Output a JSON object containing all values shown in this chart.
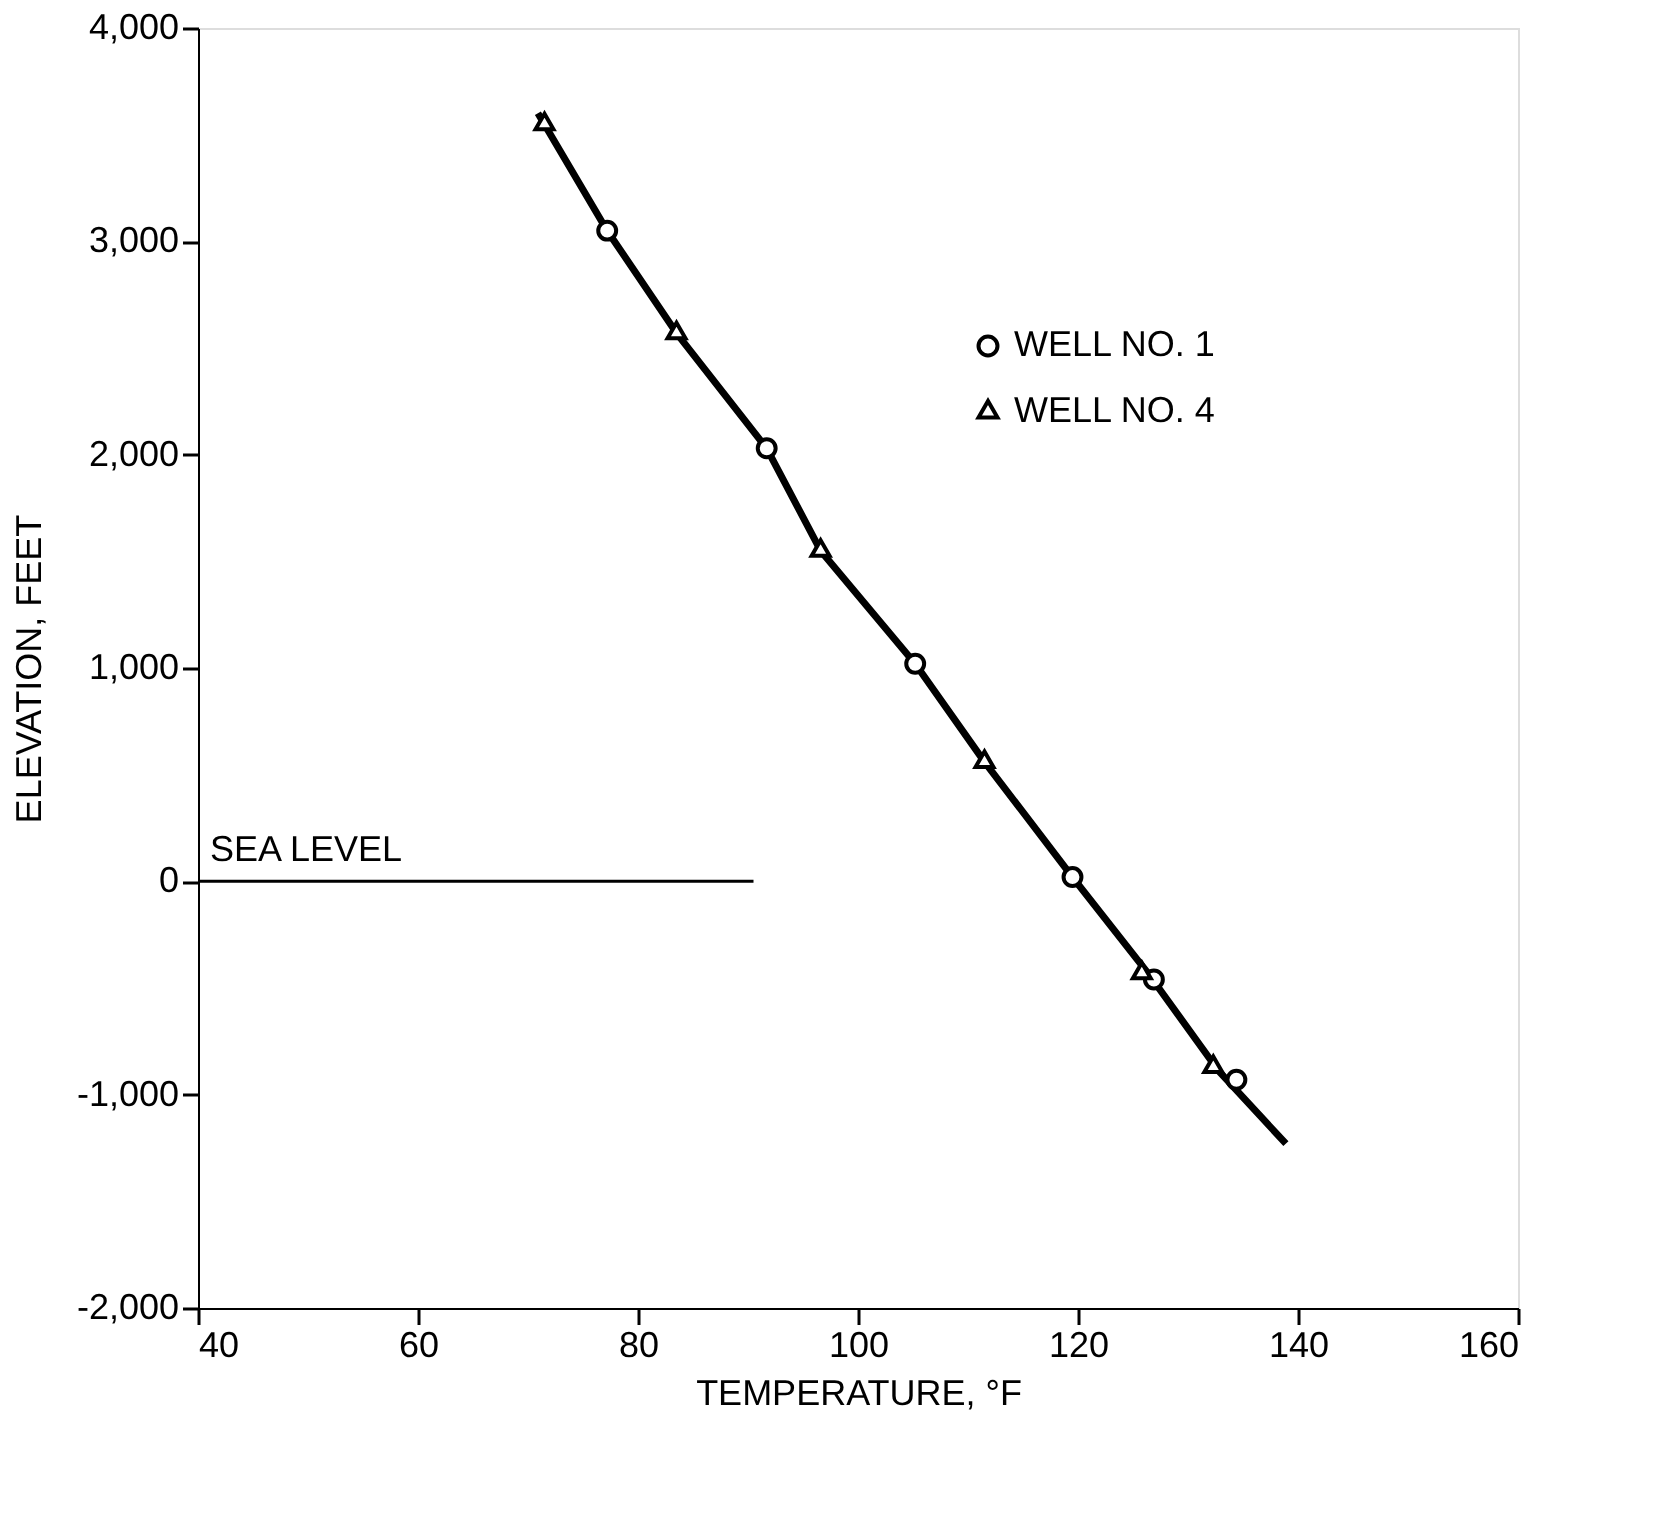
{
  "chart_data": {
    "type": "scatter",
    "xlabel": "TEMPERATURE, °F",
    "ylabel": "ELEVATION, FEET",
    "xlim": [
      40,
      160
    ],
    "xticks": [
      40,
      60,
      80,
      100,
      120,
      140,
      160
    ],
    "ylim": [
      -2000,
      4000
    ],
    "yticks": [
      {
        "value": -2000,
        "label": "-2,000"
      },
      {
        "value": -1000,
        "label": "-1,000"
      },
      {
        "value": 0,
        "label": "0"
      },
      {
        "value": 1000,
        "label": "1,000"
      },
      {
        "value": 2000,
        "label": "2,000"
      },
      {
        "value": 3000,
        "label": "3,000"
      },
      {
        "value": 4000,
        "label": "4,000"
      }
    ],
    "grid": false,
    "legend": "top right",
    "series": [
      {
        "name": "WELL NO. 1",
        "color": "#000000",
        "marker": "circle",
        "x": [
          77.2,
          91.7,
          105.2,
          119.5,
          126.9,
          134.4
        ],
        "values": [
          3050,
          2030,
          1020,
          20,
          -460,
          -930
        ]
      },
      {
        "name": "WELL NO. 4",
        "color": "#000000",
        "marker": "triangle",
        "x": [
          71.5,
          83.5,
          96.6,
          111.5,
          125.8,
          132.3
        ],
        "values": [
          3550,
          2570,
          1550,
          560,
          -430,
          -870
        ]
      },
      {
        "type": "line",
        "color": "#000000",
        "marker": "none",
        "x": [
          70.9,
          77.2,
          83.5,
          91.7,
          96.6,
          105.2,
          111.5,
          119.5,
          126.5,
          132.8,
          138.9
        ],
        "values": [
          3600,
          3050,
          2570,
          2030,
          1550,
          1020,
          560,
          20,
          -440,
          -890,
          -1230
        ]
      },
      {
        "type": "line",
        "name": "SEA LEVEL",
        "color": "#000000",
        "marker": "none",
        "x": [
          40,
          90.5
        ],
        "values": [
          0,
          0
        ]
      }
    ]
  }
}
